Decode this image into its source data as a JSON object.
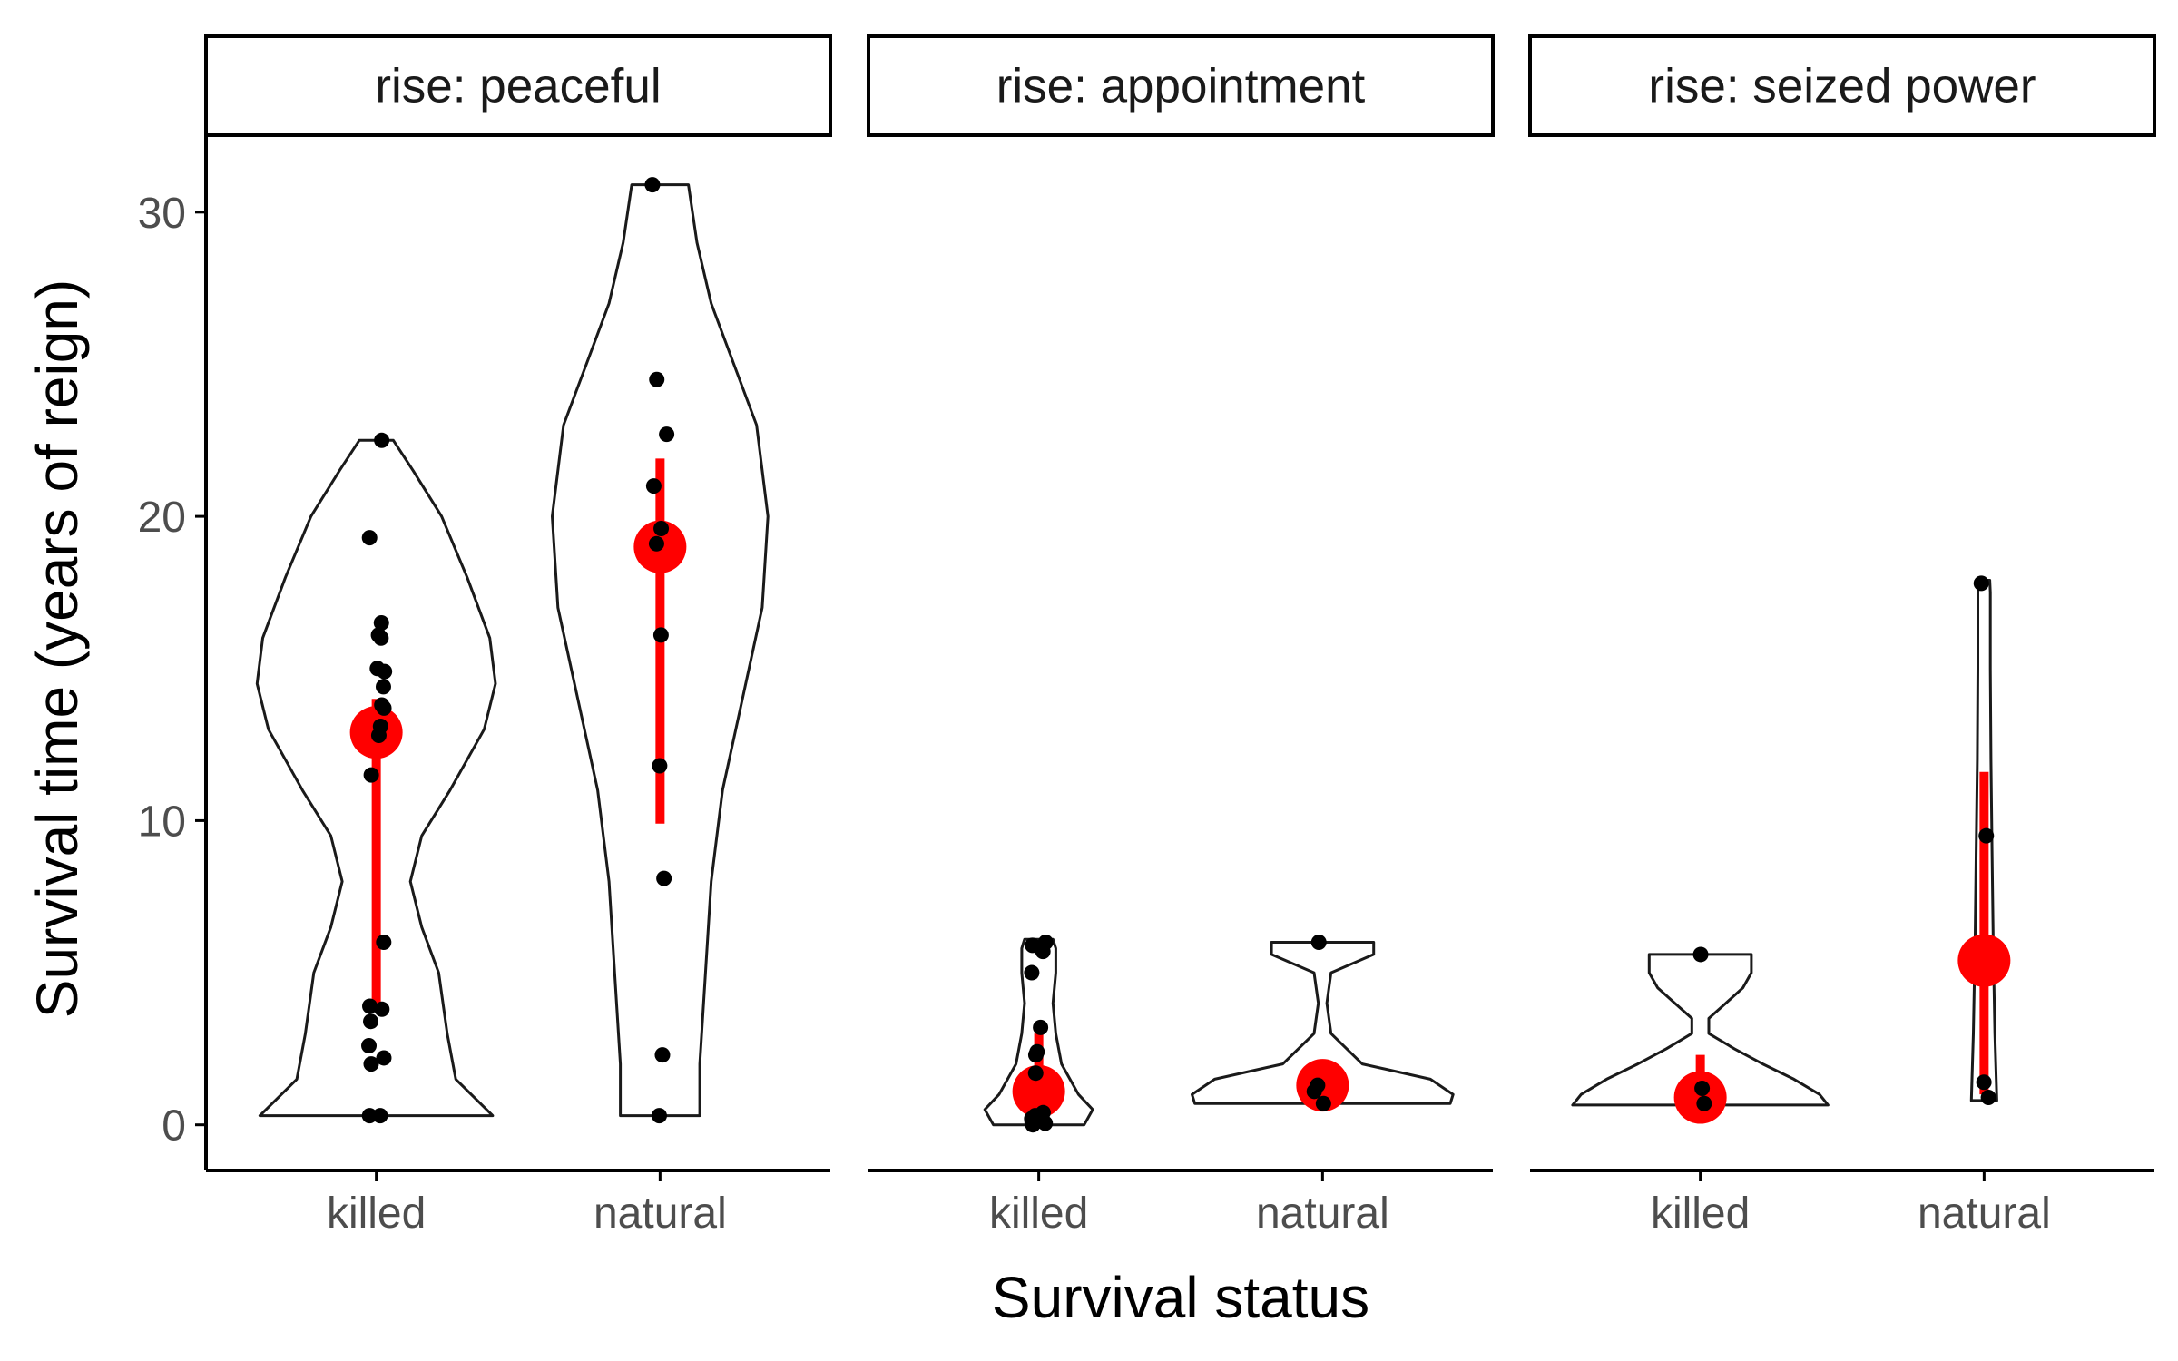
{
  "chart_data": {
    "type": "violin",
    "xlabel": "Survival status",
    "ylabel": "Survival time (years of reign)",
    "ylim": [
      -1.5,
      32.5
    ],
    "yticks": [
      0,
      10,
      20,
      30
    ],
    "categories": [
      "killed",
      "natural"
    ],
    "grid": false,
    "legend": "none",
    "colors": {
      "summary": "#ff0000",
      "points": "#000000",
      "violin_outline": "#1a1a1a",
      "axis": "#000000"
    },
    "panels": [
      {
        "strip": "rise: peaceful",
        "groups": [
          {
            "category": "killed",
            "points": [
              22.5,
              19.3,
              16.5,
              16.1,
              16.0,
              15.0,
              14.9,
              14.4,
              13.8,
              13.7,
              13.1,
              12.8,
              11.5,
              6.0,
              3.9,
              3.8,
              3.4,
              2.6,
              2.2,
              2.0,
              0.3,
              0.3
            ],
            "summary": {
              "mean": 12.9,
              "lower": 4.0,
              "upper": 14.0
            },
            "violin_width": [
              [
                0.3,
                0.41
              ],
              [
                1.5,
                0.28
              ],
              [
                3,
                0.25
              ],
              [
                5,
                0.22
              ],
              [
                6.5,
                0.16
              ],
              [
                8,
                0.12
              ],
              [
                9.5,
                0.16
              ],
              [
                11,
                0.26
              ],
              [
                13,
                0.38
              ],
              [
                14.5,
                0.42
              ],
              [
                16,
                0.4
              ],
              [
                18,
                0.32
              ],
              [
                20,
                0.23
              ],
              [
                21.5,
                0.13
              ],
              [
                22.5,
                0.06
              ]
            ]
          },
          {
            "category": "natural",
            "points": [
              30.9,
              24.5,
              22.7,
              21.0,
              19.6,
              19.1,
              16.1,
              11.8,
              8.1,
              2.3,
              0.3
            ],
            "summary": {
              "mean": 19.0,
              "lower": 9.9,
              "upper": 21.9
            },
            "violin_width": [
              [
                0.3,
                0.14
              ],
              [
                2,
                0.14
              ],
              [
                5,
                0.16
              ],
              [
                8,
                0.18
              ],
              [
                11,
                0.22
              ],
              [
                14,
                0.29
              ],
              [
                17,
                0.36
              ],
              [
                20,
                0.38
              ],
              [
                23,
                0.34
              ],
              [
                25,
                0.26
              ],
              [
                27,
                0.18
              ],
              [
                29,
                0.13
              ],
              [
                30.9,
                0.1
              ]
            ]
          }
        ]
      },
      {
        "strip": "rise: appointment",
        "groups": [
          {
            "category": "killed",
            "points": [
              6.0,
              5.9,
              5.7,
              5.0,
              3.2,
              2.4,
              2.3,
              1.7,
              0.4,
              0.3,
              0.3,
              0.2,
              0.1,
              0.05,
              0.0
            ],
            "summary": {
              "mean": 1.1,
              "lower": 0.0,
              "upper": 3.0
            },
            "violin_width": [
              [
                0.0,
                0.16
              ],
              [
                0.5,
                0.19
              ],
              [
                1,
                0.14
              ],
              [
                2,
                0.08
              ],
              [
                3,
                0.06
              ],
              [
                4,
                0.05
              ],
              [
                5,
                0.06
              ],
              [
                5.8,
                0.06
              ],
              [
                6.1,
                0.05
              ]
            ]
          },
          {
            "category": "natural",
            "points": [
              6.0,
              1.3,
              1.1,
              0.7
            ],
            "summary": {
              "mean": 1.3,
              "lower": 0.9,
              "upper": 1.7
            },
            "violin_width": [
              [
                0.7,
                0.45
              ],
              [
                1.0,
                0.46
              ],
              [
                1.5,
                0.38
              ],
              [
                2,
                0.14
              ],
              [
                3,
                0.03
              ],
              [
                4,
                0.015
              ],
              [
                5,
                0.03
              ],
              [
                5.6,
                0.18
              ],
              [
                6.0,
                0.18
              ]
            ]
          }
        ]
      },
      {
        "strip": "rise: seized power",
        "groups": [
          {
            "category": "killed",
            "points": [
              5.6,
              1.2,
              0.7
            ],
            "summary": {
              "mean": 0.9,
              "lower": 0.5,
              "upper": 2.3
            },
            "violin_width": [
              [
                0.65,
                0.45
              ],
              [
                1.0,
                0.42
              ],
              [
                1.5,
                0.33
              ],
              [
                2,
                0.22
              ],
              [
                2.5,
                0.12
              ],
              [
                3,
                0.03
              ],
              [
                3.5,
                0.03
              ],
              [
                4,
                0.09
              ],
              [
                4.5,
                0.15
              ],
              [
                5,
                0.18
              ],
              [
                5.6,
                0.18
              ]
            ]
          },
          {
            "category": "natural",
            "points": [
              17.8,
              9.5,
              1.4,
              0.9
            ],
            "summary": {
              "mean": 5.4,
              "lower": 1.0,
              "upper": 11.6
            },
            "violin_width": [
              [
                0.8,
                0.045
              ],
              [
                3,
                0.038
              ],
              [
                6,
                0.032
              ],
              [
                9,
                0.028
              ],
              [
                12,
                0.024
              ],
              [
                15,
                0.022
              ],
              [
                17.5,
                0.022
              ],
              [
                17.9,
                0.02
              ]
            ]
          }
        ]
      }
    ]
  }
}
